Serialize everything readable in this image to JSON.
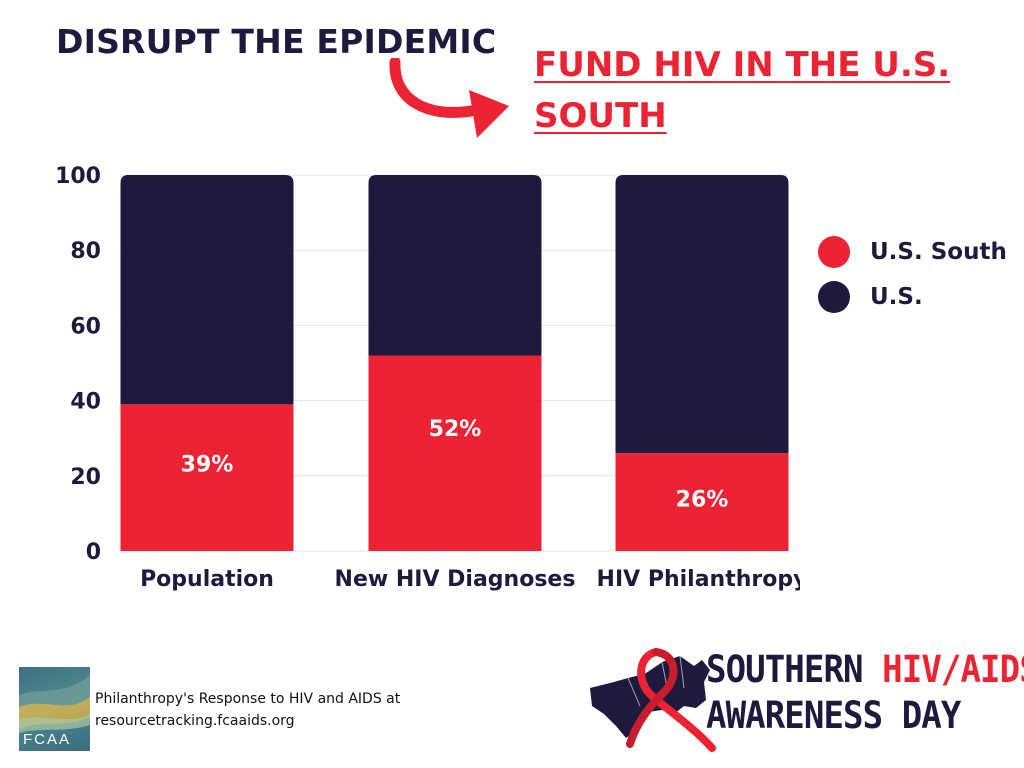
{
  "header": {
    "headline": "DISRUPT THE EPIDEMIC",
    "subhead": "FUND HIV IN THE U.S. SOUTH"
  },
  "colors": {
    "south_red": "#ec2333",
    "us_navy": "#1e1a3e",
    "grid": "#e4e4e4"
  },
  "chart_data": {
    "type": "bar",
    "stacked": true,
    "categories": [
      "Population",
      "New HIV Diagnoses",
      "HIV Philanthropy"
    ],
    "series": [
      {
        "name": "U.S. South",
        "values": [
          39,
          52,
          26
        ],
        "color": "#ec2333",
        "data_labels": [
          "39%",
          "52%",
          "26%"
        ]
      },
      {
        "name": "U.S.",
        "values": [
          61,
          48,
          74
        ],
        "color": "#1e1a3e"
      }
    ],
    "ylim": [
      0,
      100
    ],
    "yticks": [
      0,
      20,
      40,
      60,
      80,
      100
    ],
    "grid": true,
    "legend_position": "right",
    "title": "",
    "xlabel": "",
    "ylabel": ""
  },
  "legend": [
    {
      "label": "U.S. South",
      "color": "#ec2333"
    },
    {
      "label": "U.S.",
      "color": "#1e1a3e"
    }
  ],
  "footer": {
    "fcaa_logo_text": "FCAA",
    "source_line1": "Philanthropy's Response to HIV and AIDS at",
    "source_line2": "resourcetracking.fcaaids.org",
    "event_logo": {
      "word_southern": "SOUTHERN",
      "word_hiv_aids": "HIV/AIDS",
      "line2": "AWARENESS DAY"
    }
  }
}
